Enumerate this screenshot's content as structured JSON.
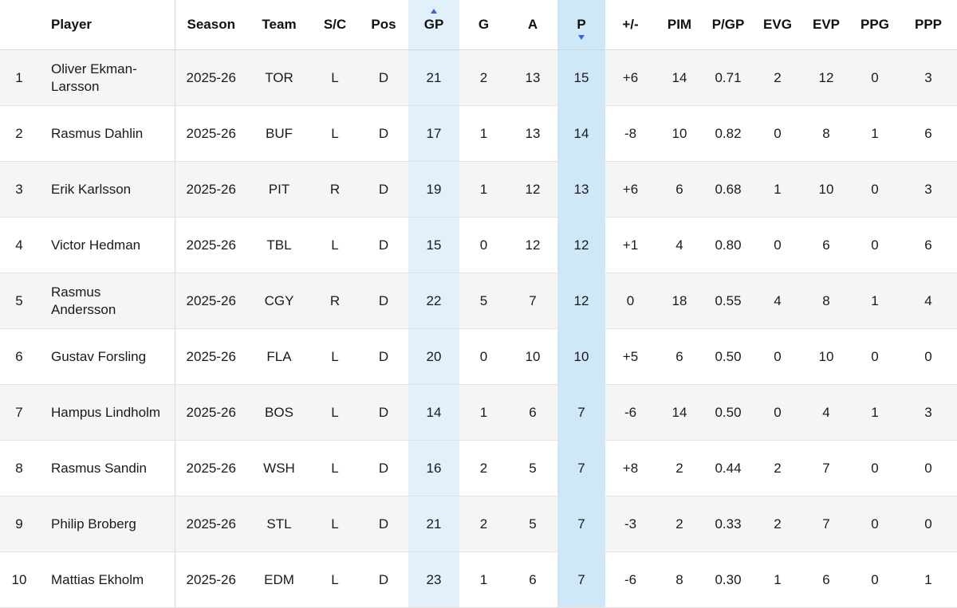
{
  "colors": {
    "gp_column_bg": "#e1f0fb",
    "p_column_bg": "#cfe8f8",
    "alt_row_bg": "#f5f5f5",
    "row_border": "#e2e2e2",
    "player_column_divider": "#d9d9d9",
    "sort_caret": "#2f66e3",
    "text": "#1a1a1a"
  },
  "sort_state": {
    "gp": "asc-caret-above",
    "p": "desc-caret-below"
  },
  "table": {
    "headers": [
      {
        "key": "rank",
        "label": ""
      },
      {
        "key": "player",
        "label": "Player"
      },
      {
        "key": "season",
        "label": "Season"
      },
      {
        "key": "team",
        "label": "Team"
      },
      {
        "key": "sc",
        "label": "S/C"
      },
      {
        "key": "pos",
        "label": "Pos"
      },
      {
        "key": "gp",
        "label": "GP",
        "sort": "asc",
        "highlight": true
      },
      {
        "key": "g",
        "label": "G"
      },
      {
        "key": "a",
        "label": "A"
      },
      {
        "key": "p",
        "label": "P",
        "sort": "desc",
        "highlight": true
      },
      {
        "key": "plus_minus",
        "label": "+/-"
      },
      {
        "key": "pim",
        "label": "PIM"
      },
      {
        "key": "pgp",
        "label": "P/GP"
      },
      {
        "key": "evg",
        "label": "EVG"
      },
      {
        "key": "evp",
        "label": "EVP"
      },
      {
        "key": "ppg",
        "label": "PPG"
      },
      {
        "key": "ppp",
        "label": "PPP"
      }
    ],
    "rows": [
      {
        "rank": "1",
        "player": "Oliver Ekman-Larsson",
        "season": "2025-26",
        "team": "TOR",
        "sc": "L",
        "pos": "D",
        "gp": "21",
        "g": "2",
        "a": "13",
        "p": "15",
        "plus_minus": "+6",
        "pim": "14",
        "pgp": "0.71",
        "evg": "2",
        "evp": "12",
        "ppg": "0",
        "ppp": "3"
      },
      {
        "rank": "2",
        "player": "Rasmus Dahlin",
        "season": "2025-26",
        "team": "BUF",
        "sc": "L",
        "pos": "D",
        "gp": "17",
        "g": "1",
        "a": "13",
        "p": "14",
        "plus_minus": "-8",
        "pim": "10",
        "pgp": "0.82",
        "evg": "0",
        "evp": "8",
        "ppg": "1",
        "ppp": "6"
      },
      {
        "rank": "3",
        "player": "Erik Karlsson",
        "season": "2025-26",
        "team": "PIT",
        "sc": "R",
        "pos": "D",
        "gp": "19",
        "g": "1",
        "a": "12",
        "p": "13",
        "plus_minus": "+6",
        "pim": "6",
        "pgp": "0.68",
        "evg": "1",
        "evp": "10",
        "ppg": "0",
        "ppp": "3"
      },
      {
        "rank": "4",
        "player": "Victor Hedman",
        "season": "2025-26",
        "team": "TBL",
        "sc": "L",
        "pos": "D",
        "gp": "15",
        "g": "0",
        "a": "12",
        "p": "12",
        "plus_minus": "+1",
        "pim": "4",
        "pgp": "0.80",
        "evg": "0",
        "evp": "6",
        "ppg": "0",
        "ppp": "6"
      },
      {
        "rank": "5",
        "player": "Rasmus Andersson",
        "season": "2025-26",
        "team": "CGY",
        "sc": "R",
        "pos": "D",
        "gp": "22",
        "g": "5",
        "a": "7",
        "p": "12",
        "plus_minus": "0",
        "pim": "18",
        "pgp": "0.55",
        "evg": "4",
        "evp": "8",
        "ppg": "1",
        "ppp": "4"
      },
      {
        "rank": "6",
        "player": "Gustav Forsling",
        "season": "2025-26",
        "team": "FLA",
        "sc": "L",
        "pos": "D",
        "gp": "20",
        "g": "0",
        "a": "10",
        "p": "10",
        "plus_minus": "+5",
        "pim": "6",
        "pgp": "0.50",
        "evg": "0",
        "evp": "10",
        "ppg": "0",
        "ppp": "0"
      },
      {
        "rank": "7",
        "player": "Hampus Lindholm",
        "season": "2025-26",
        "team": "BOS",
        "sc": "L",
        "pos": "D",
        "gp": "14",
        "g": "1",
        "a": "6",
        "p": "7",
        "plus_minus": "-6",
        "pim": "14",
        "pgp": "0.50",
        "evg": "0",
        "evp": "4",
        "ppg": "1",
        "ppp": "3"
      },
      {
        "rank": "8",
        "player": "Rasmus Sandin",
        "season": "2025-26",
        "team": "WSH",
        "sc": "L",
        "pos": "D",
        "gp": "16",
        "g": "2",
        "a": "5",
        "p": "7",
        "plus_minus": "+8",
        "pim": "2",
        "pgp": "0.44",
        "evg": "2",
        "evp": "7",
        "ppg": "0",
        "ppp": "0"
      },
      {
        "rank": "9",
        "player": "Philip Broberg",
        "season": "2025-26",
        "team": "STL",
        "sc": "L",
        "pos": "D",
        "gp": "21",
        "g": "2",
        "a": "5",
        "p": "7",
        "plus_minus": "-3",
        "pim": "2",
        "pgp": "0.33",
        "evg": "2",
        "evp": "7",
        "ppg": "0",
        "ppp": "0"
      },
      {
        "rank": "10",
        "player": "Mattias Ekholm",
        "season": "2025-26",
        "team": "EDM",
        "sc": "L",
        "pos": "D",
        "gp": "23",
        "g": "1",
        "a": "6",
        "p": "7",
        "plus_minus": "-6",
        "pim": "8",
        "pgp": "0.30",
        "evg": "1",
        "evp": "6",
        "ppg": "0",
        "ppp": "1"
      }
    ]
  }
}
